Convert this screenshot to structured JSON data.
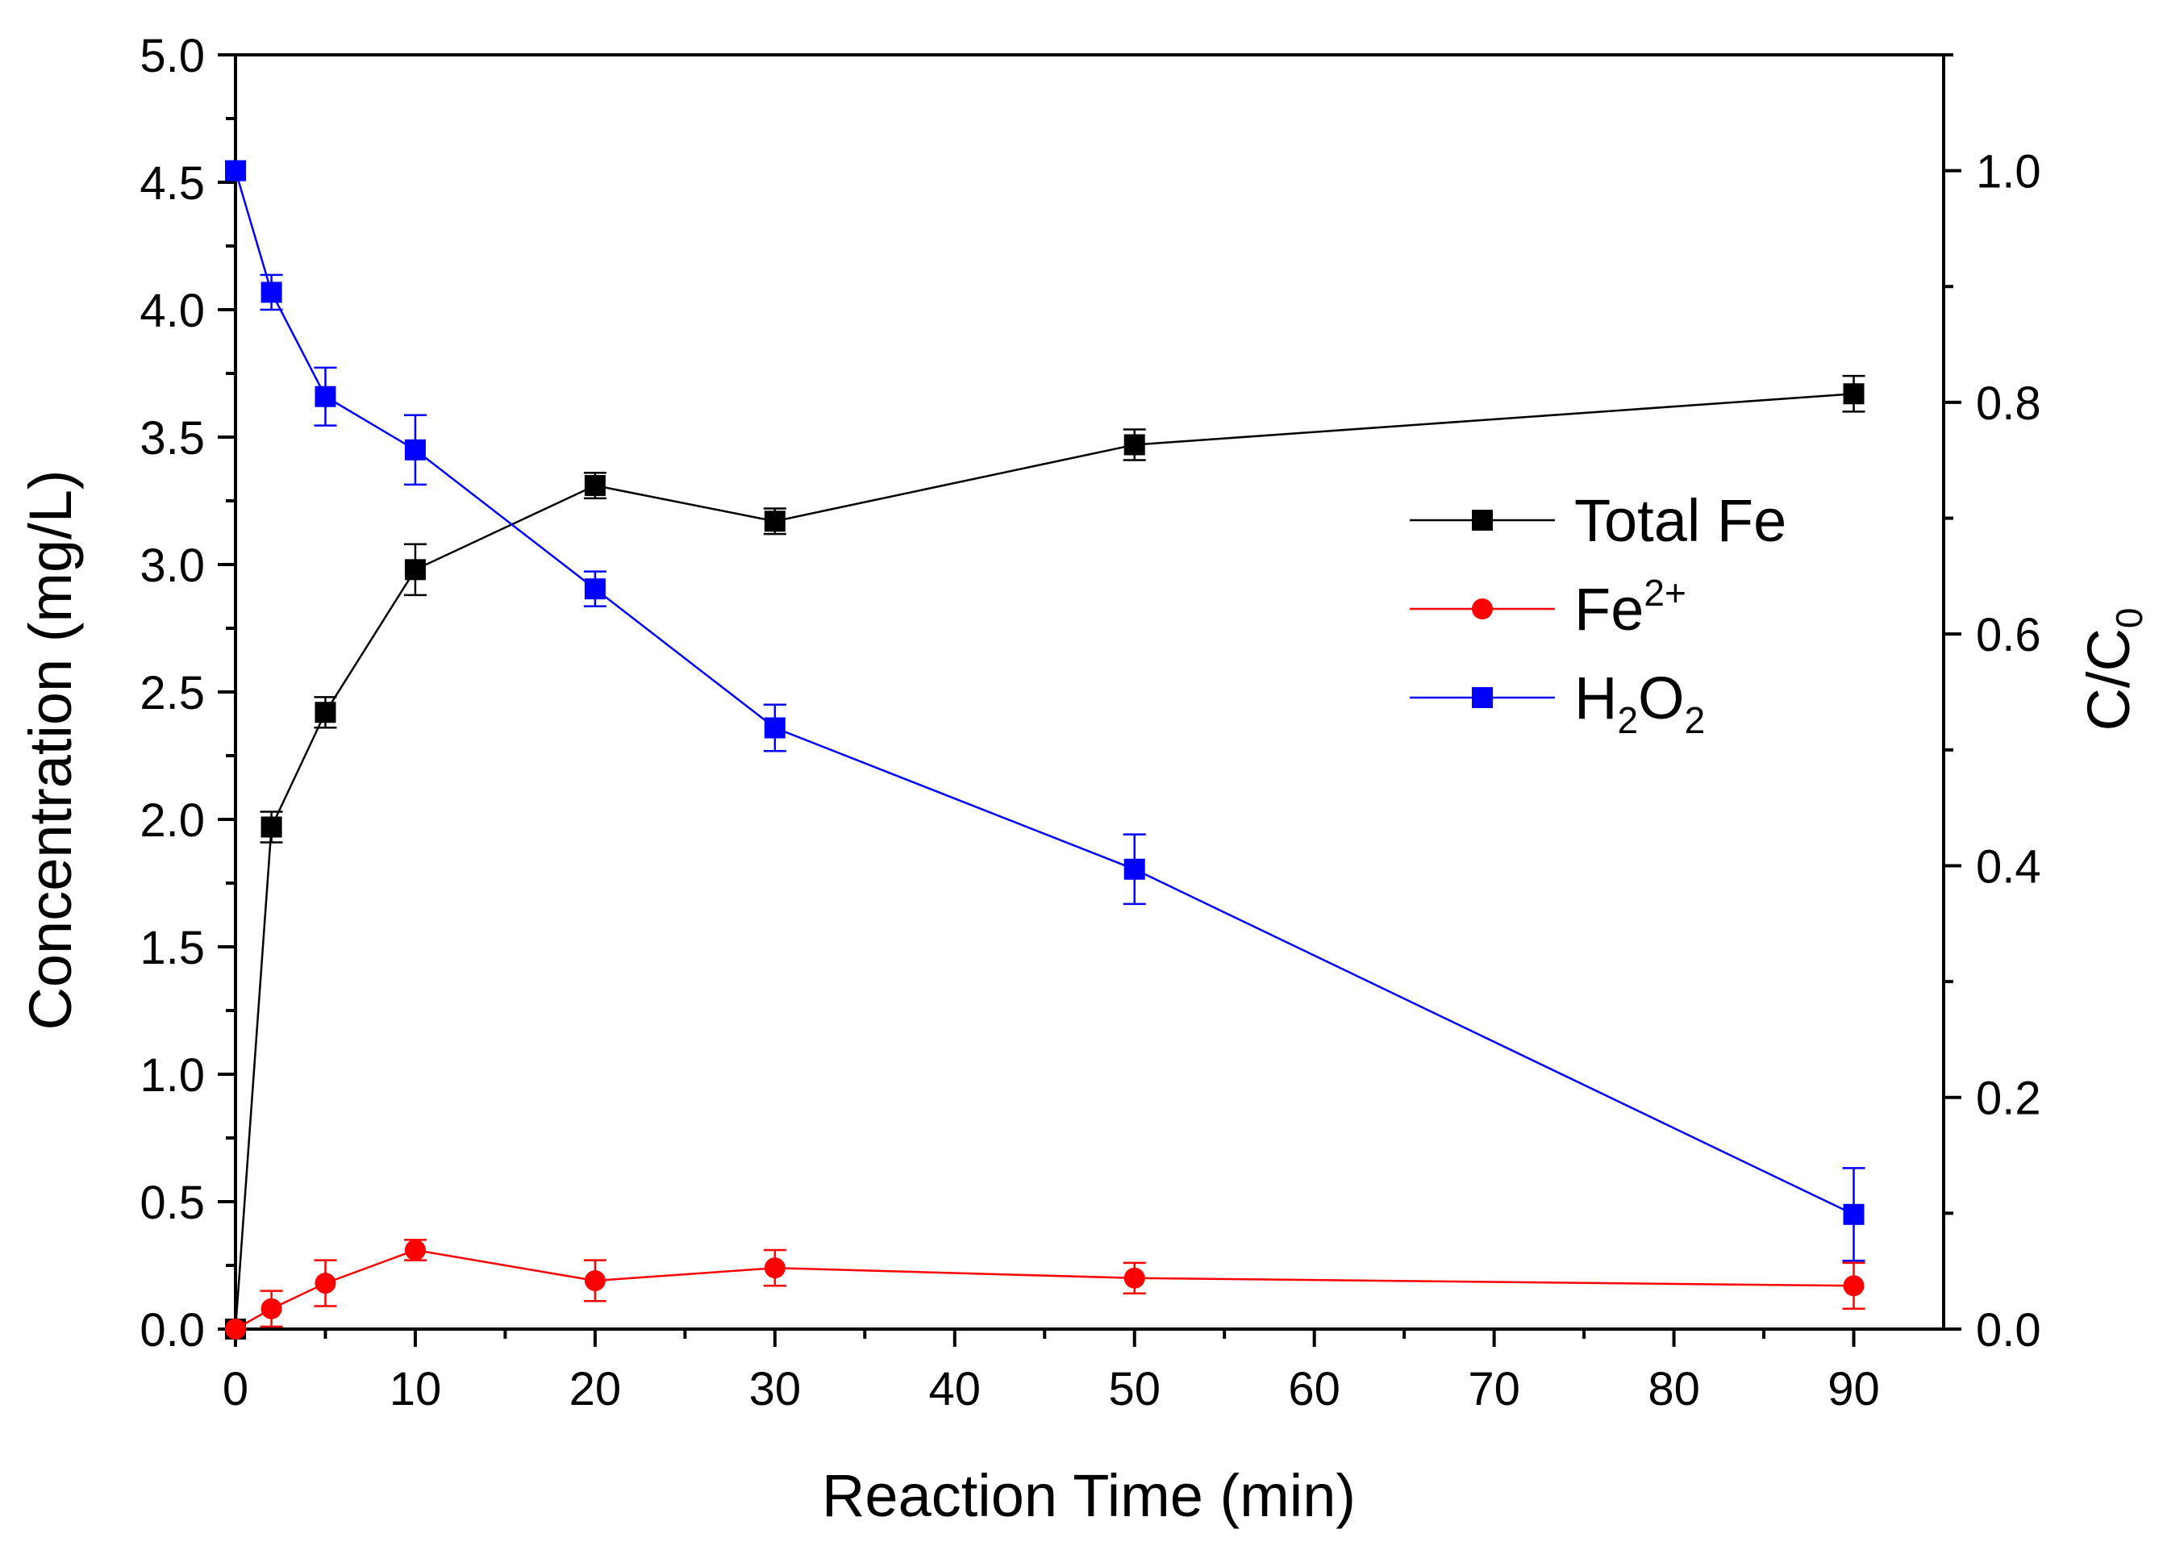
{
  "chart_data": {
    "type": "line",
    "title": "",
    "xlabel": "Reaction Time (min)",
    "ylabel": "Concentration (mg/L)",
    "y2label": {
      "base": "C/C",
      "sub": "0"
    },
    "xlim": [
      0,
      95
    ],
    "ylim": [
      0,
      5.0
    ],
    "y2lim": [
      0,
      1.1
    ],
    "x_ticks": [
      0,
      10,
      20,
      30,
      40,
      50,
      60,
      70,
      80,
      90
    ],
    "x_tick_labels": [
      "0",
      "10",
      "20",
      "30",
      "40",
      "50",
      "60",
      "70",
      "80",
      "90"
    ],
    "y_ticks": [
      0,
      0.5,
      1.0,
      1.5,
      2.0,
      2.5,
      3.0,
      3.5,
      4.0,
      4.5,
      5.0
    ],
    "y_tick_labels": [
      "0.0",
      "0.5",
      "1.0",
      "1.5",
      "2.0",
      "2.5",
      "3.0",
      "3.5",
      "4.0",
      "4.5",
      "5.0"
    ],
    "y2_ticks": [
      0,
      0.2,
      0.4,
      0.6,
      0.8,
      1.0
    ],
    "y2_tick_labels": [
      "0.0",
      "0.2",
      "0.4",
      "0.6",
      "0.8",
      "1.0"
    ],
    "grid": false,
    "legend_position": "right",
    "series": [
      {
        "name": "Total Fe",
        "legend": {
          "base": "Total Fe",
          "parts": []
        },
        "axis": "left",
        "color": "#000000",
        "marker": "square",
        "x": [
          0,
          2,
          5,
          10,
          20,
          30,
          50,
          90
        ],
        "y": [
          0.0,
          1.97,
          2.42,
          2.98,
          3.31,
          3.17,
          3.47,
          3.67
        ],
        "err": [
          0.0,
          0.06,
          0.06,
          0.1,
          0.05,
          0.05,
          0.06,
          0.07
        ]
      },
      {
        "name": "Fe2+",
        "legend": {
          "base": "Fe",
          "parts": [
            {
              "text": "2+",
              "pos": "sup"
            }
          ]
        },
        "axis": "left",
        "color": "#ff0000",
        "marker": "circle",
        "x": [
          0,
          2,
          5,
          10,
          20,
          30,
          50,
          90
        ],
        "y": [
          0.0,
          0.08,
          0.18,
          0.31,
          0.19,
          0.24,
          0.2,
          0.17
        ],
        "err": [
          0.0,
          0.07,
          0.09,
          0.04,
          0.08,
          0.07,
          0.06,
          0.09
        ]
      },
      {
        "name": "H2O2",
        "legend": {
          "base": "H",
          "parts": [
            {
              "text": "2",
              "pos": "sub"
            },
            {
              "text": "O",
              "pos": "base"
            },
            {
              "text": "2",
              "pos": "sub"
            }
          ]
        },
        "axis": "right",
        "color": "#0000ff",
        "marker": "square",
        "x": [
          0,
          2,
          5,
          10,
          20,
          30,
          50,
          90
        ],
        "y": [
          1.0,
          0.895,
          0.805,
          0.759,
          0.639,
          0.519,
          0.397,
          0.099
        ],
        "err": [
          0.0,
          0.015,
          0.025,
          0.03,
          0.015,
          0.02,
          0.03,
          0.04
        ]
      }
    ]
  }
}
